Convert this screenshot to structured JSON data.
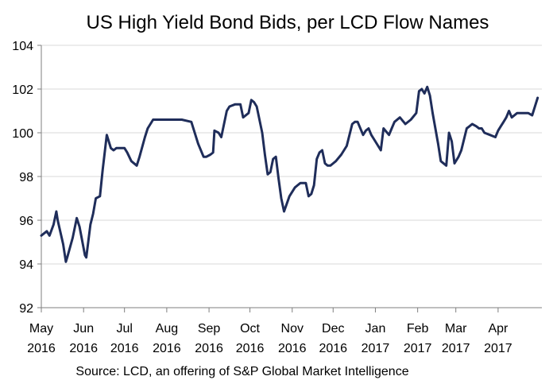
{
  "chart_data": {
    "type": "line",
    "title": "US High Yield Bond Bids, per LCD Flow Names",
    "source": "Source: LCD, an offering of S&P Global Market Intelligence",
    "xlabel": "",
    "ylabel": "",
    "ylim": [
      92,
      104
    ],
    "yticks": [
      92,
      94,
      96,
      98,
      100,
      102,
      104
    ],
    "grid": true,
    "legend": "none",
    "line_color": "#1F2D5A",
    "xtick_labels": [
      {
        "month": "May",
        "year": "2016"
      },
      {
        "month": "Jun",
        "year": "2016"
      },
      {
        "month": "Jul",
        "year": "2016"
      },
      {
        "month": "Aug",
        "year": "2016"
      },
      {
        "month": "Sep",
        "year": "2016"
      },
      {
        "month": "Oct",
        "year": "2016"
      },
      {
        "month": "Nov",
        "year": "2016"
      },
      {
        "month": "Dec",
        "year": "2016"
      },
      {
        "month": "Jan",
        "year": "2017"
      },
      {
        "month": "Feb",
        "year": "2017"
      },
      {
        "month": "Mar",
        "year": "2017"
      },
      {
        "month": "Apr",
        "year": "2017"
      }
    ],
    "series": [
      {
        "x": [
          "2016-05-01",
          "2016-05-05",
          "2016-05-07",
          "2016-05-10",
          "2016-05-12",
          "2016-05-13",
          "2016-05-17",
          "2016-05-19",
          "2016-05-20",
          "2016-05-24",
          "2016-05-27",
          "2016-05-29",
          "2016-06-02",
          "2016-06-03",
          "2016-06-06",
          "2016-06-08",
          "2016-06-10",
          "2016-06-13",
          "2016-06-15",
          "2016-06-18",
          "2016-06-21",
          "2016-06-23",
          "2016-06-25",
          "2016-06-27",
          "2016-07-01",
          "2016-07-03",
          "2016-07-06",
          "2016-07-10",
          "2016-07-12",
          "2016-07-16",
          "2016-07-18",
          "2016-07-22",
          "2016-07-25",
          "2016-07-27",
          "2016-07-30",
          "2016-08-02",
          "2016-08-06",
          "2016-08-12",
          "2016-08-19",
          "2016-08-24",
          "2016-08-28",
          "2016-08-30",
          "2016-09-02",
          "2016-09-04",
          "2016-09-05",
          "2016-09-08",
          "2016-09-10",
          "2016-09-14",
          "2016-09-16",
          "2016-09-20",
          "2016-09-24",
          "2016-09-26",
          "2016-09-30",
          "2016-10-02",
          "2016-10-04",
          "2016-10-06",
          "2016-10-10",
          "2016-10-12",
          "2016-10-14",
          "2016-10-16",
          "2016-10-18",
          "2016-10-20",
          "2016-10-22",
          "2016-10-24",
          "2016-10-26",
          "2016-10-30",
          "2016-11-03",
          "2016-11-05",
          "2016-11-07",
          "2016-11-09",
          "2016-11-11",
          "2016-11-13",
          "2016-11-15",
          "2016-11-17",
          "2016-11-19",
          "2016-11-21",
          "2016-11-23",
          "2016-11-25",
          "2016-11-27",
          "2016-11-29",
          "2016-12-01",
          "2016-12-03",
          "2016-12-07",
          "2016-12-11",
          "2016-12-15",
          "2016-12-17",
          "2016-12-19",
          "2016-12-23",
          "2016-12-25",
          "2016-12-27",
          "2016-12-29",
          "2017-01-01",
          "2017-01-03",
          "2017-01-05",
          "2017-01-07",
          "2017-01-11",
          "2017-01-13",
          "2017-01-15",
          "2017-01-19",
          "2017-01-23",
          "2017-01-27",
          "2017-01-31",
          "2017-02-02",
          "2017-02-04",
          "2017-02-06",
          "2017-02-08",
          "2017-02-10",
          "2017-02-12",
          "2017-02-16",
          "2017-02-18",
          "2017-02-22",
          "2017-02-24",
          "2017-02-26",
          "2017-02-28",
          "2017-03-03",
          "2017-03-05",
          "2017-03-09",
          "2017-03-11",
          "2017-03-13",
          "2017-03-16",
          "2017-03-18",
          "2017-03-20",
          "2017-03-22",
          "2017-03-26",
          "2017-03-30",
          "2017-04-01",
          "2017-04-03",
          "2017-04-05",
          "2017-04-07",
          "2017-04-09",
          "2017-04-11",
          "2017-04-15",
          "2017-04-19",
          "2017-04-23",
          "2017-04-26",
          "2017-04-30"
        ],
        "values": [
          95.3,
          95.5,
          95.3,
          95.8,
          96.4,
          96.0,
          94.9,
          94.1,
          94.3,
          95.2,
          96.1,
          95.7,
          94.4,
          94.3,
          95.8,
          96.3,
          97.0,
          97.1,
          98.3,
          99.9,
          99.3,
          99.2,
          99.3,
          99.3,
          99.3,
          99.1,
          98.7,
          98.5,
          98.9,
          99.8,
          100.2,
          100.6,
          100.6,
          100.6,
          100.6,
          100.6,
          100.6,
          100.6,
          100.5,
          99.5,
          98.9,
          98.9,
          99.0,
          99.1,
          100.1,
          100.0,
          99.8,
          101.0,
          101.2,
          101.3,
          101.3,
          100.7,
          100.9,
          101.5,
          101.4,
          101.2,
          100.0,
          99.0,
          98.1,
          98.2,
          98.8,
          98.9,
          97.9,
          97.0,
          96.4,
          97.1,
          97.5,
          97.6,
          97.7,
          97.7,
          97.7,
          97.1,
          97.2,
          97.6,
          98.8,
          99.1,
          99.2,
          98.6,
          98.5,
          98.5,
          98.6,
          98.7,
          99.0,
          99.4,
          100.4,
          100.5,
          100.5,
          99.9,
          100.1,
          100.2,
          99.9,
          99.6,
          99.4,
          99.2,
          100.2,
          99.9,
          100.2,
          100.5,
          100.7,
          100.4,
          100.6,
          100.9,
          101.9,
          102.0,
          101.8,
          102.1,
          101.7,
          100.9,
          99.5,
          98.7,
          98.5,
          100.0,
          99.6,
          98.6,
          98.9,
          99.2,
          100.2,
          100.3,
          100.4,
          100.3,
          100.2,
          100.2,
          100.0,
          99.9,
          99.8,
          100.1,
          100.3,
          100.5,
          100.7,
          101.0,
          100.7,
          100.9,
          100.9,
          100.9,
          100.8,
          101.6
        ]
      }
    ]
  }
}
